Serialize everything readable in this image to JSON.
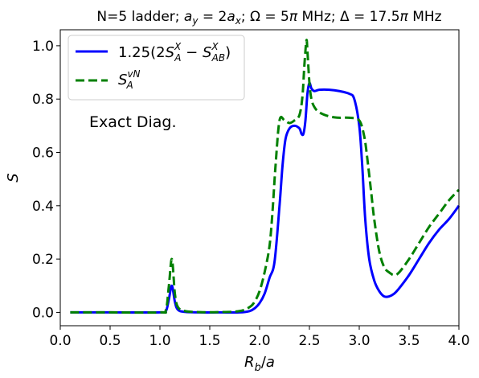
{
  "chart_data": {
    "type": "line",
    "title": "N=5 ladder; a_y = 2a_x; Ω = 5π MHz; Δ = 17.5π MHz",
    "xlabel": "R_b/a",
    "ylabel": "S",
    "xlim": [
      0.0,
      4.0
    ],
    "ylim": [
      -0.05,
      1.06
    ],
    "xticks": [
      "0.0",
      "0.5",
      "1.0",
      "1.5",
      "2.0",
      "2.5",
      "3.0",
      "3.5",
      "4.0"
    ],
    "yticks": [
      "0.0",
      "0.2",
      "0.4",
      "0.6",
      "0.8",
      "1.0"
    ],
    "legend_position": "top-left",
    "annotation": "Exact Diag.",
    "grid": false,
    "series": [
      {
        "name": "1.25(2S_A^X − S_AB^X)",
        "color": "#0000ff",
        "style": "solid",
        "x": [
          0.1,
          0.5,
          1.0,
          1.06,
          1.09,
          1.12,
          1.15,
          1.18,
          1.25,
          1.4,
          1.6,
          1.8,
          1.9,
          1.95,
          2.0,
          2.05,
          2.1,
          2.15,
          2.2,
          2.23,
          2.26,
          2.3,
          2.35,
          2.4,
          2.42,
          2.44,
          2.46,
          2.48,
          2.5,
          2.52,
          2.55,
          2.6,
          2.7,
          2.8,
          2.9,
          2.95,
          3.0,
          3.03,
          3.06,
          3.1,
          3.15,
          3.2,
          3.25,
          3.3,
          3.35,
          3.4,
          3.5,
          3.6,
          3.7,
          3.8,
          3.9,
          4.0
        ],
        "y": [
          0.0,
          0.0,
          0.0,
          0.005,
          0.05,
          0.1,
          0.04,
          0.01,
          0.002,
          0.0,
          0.0,
          0.0,
          0.005,
          0.015,
          0.035,
          0.07,
          0.13,
          0.19,
          0.4,
          0.55,
          0.65,
          0.69,
          0.7,
          0.69,
          0.67,
          0.67,
          0.72,
          0.82,
          0.86,
          0.84,
          0.83,
          0.835,
          0.835,
          0.83,
          0.82,
          0.8,
          0.7,
          0.55,
          0.35,
          0.2,
          0.12,
          0.08,
          0.06,
          0.06,
          0.07,
          0.09,
          0.14,
          0.2,
          0.26,
          0.31,
          0.35,
          0.4
        ]
      },
      {
        "name": "S_A^vN",
        "color": "#008000",
        "style": "dashed",
        "x": [
          0.1,
          0.5,
          1.0,
          1.06,
          1.09,
          1.12,
          1.15,
          1.18,
          1.25,
          1.4,
          1.6,
          1.8,
          1.9,
          1.95,
          2.0,
          2.05,
          2.1,
          2.13,
          2.16,
          2.2,
          2.25,
          2.3,
          2.35,
          2.4,
          2.43,
          2.45,
          2.47,
          2.48,
          2.5,
          2.52,
          2.55,
          2.6,
          2.7,
          2.8,
          2.9,
          3.0,
          3.05,
          3.08,
          3.12,
          3.15,
          3.2,
          3.25,
          3.3,
          3.35,
          3.4,
          3.5,
          3.6,
          3.7,
          3.8,
          3.9,
          4.0
        ],
        "y": [
          0.0,
          0.0,
          0.0,
          0.01,
          0.1,
          0.2,
          0.07,
          0.02,
          0.005,
          0.001,
          0.001,
          0.005,
          0.02,
          0.04,
          0.08,
          0.15,
          0.25,
          0.38,
          0.55,
          0.72,
          0.72,
          0.71,
          0.72,
          0.74,
          0.81,
          0.93,
          1.02,
          0.98,
          0.86,
          0.8,
          0.77,
          0.75,
          0.735,
          0.73,
          0.73,
          0.72,
          0.66,
          0.58,
          0.45,
          0.35,
          0.23,
          0.17,
          0.15,
          0.14,
          0.15,
          0.2,
          0.26,
          0.32,
          0.37,
          0.42,
          0.46
        ]
      }
    ]
  }
}
